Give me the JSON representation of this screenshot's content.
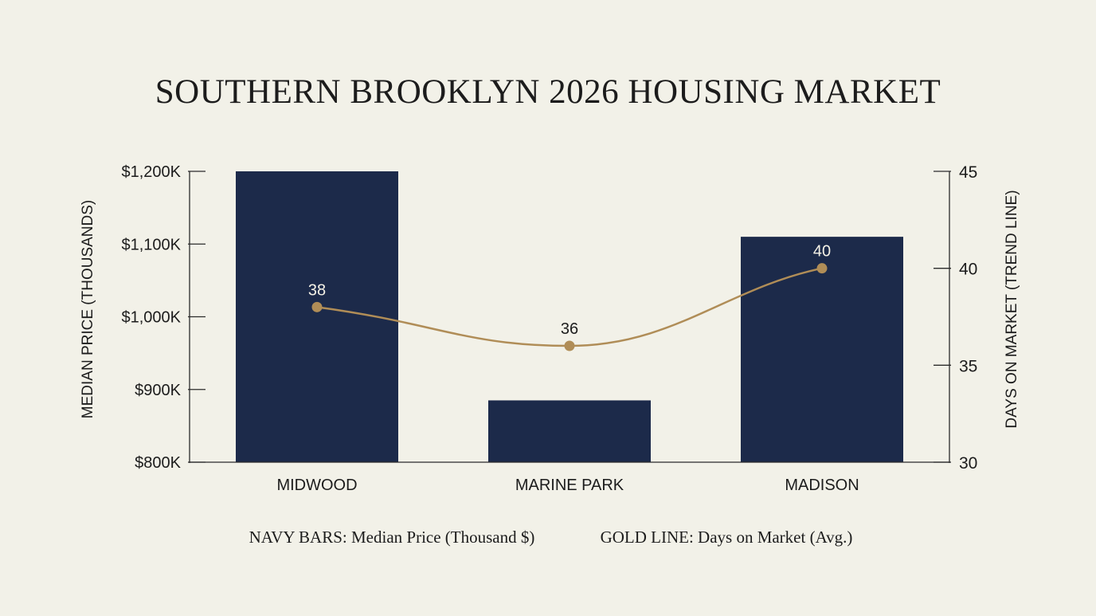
{
  "chart_data": {
    "type": "bar",
    "title": "SOUTHERN BROOKLYN 2026 HOUSING MARKET",
    "categories": [
      "MIDWOOD",
      "MARINE PARK",
      "MADISON"
    ],
    "series": [
      {
        "name": "NAVY BARS: Median Price (Thousand $)",
        "type": "bar",
        "axis": "left",
        "values": [
          1200,
          885,
          1110
        ],
        "color": "#1c2a4a"
      },
      {
        "name": "GOLD LINE: Days on Market (Avg.)",
        "type": "line",
        "axis": "right",
        "values": [
          38,
          36,
          40
        ],
        "color": "#b08d57"
      }
    ],
    "ylabel": "MEDIAN PRICE (THOUSANDS)",
    "ylim": [
      800,
      1200
    ],
    "y_ticks": [
      {
        "value": 800,
        "label": "$800K"
      },
      {
        "value": 900,
        "label": "$900K"
      },
      {
        "value": 1000,
        "label": "$1,000K"
      },
      {
        "value": 1100,
        "label": "$1,100K"
      },
      {
        "value": 1200,
        "label": "$1,200K"
      }
    ],
    "y2label": "DAYS ON MARKET (TREND LINE)",
    "y2lim": [
      30,
      45
    ],
    "y2_ticks": [
      {
        "value": 30,
        "label": "30"
      },
      {
        "value": 35,
        "label": "35"
      },
      {
        "value": 40,
        "label": "40"
      },
      {
        "value": 45,
        "label": "45"
      }
    ],
    "grid": false,
    "legend_position": "bottom"
  }
}
